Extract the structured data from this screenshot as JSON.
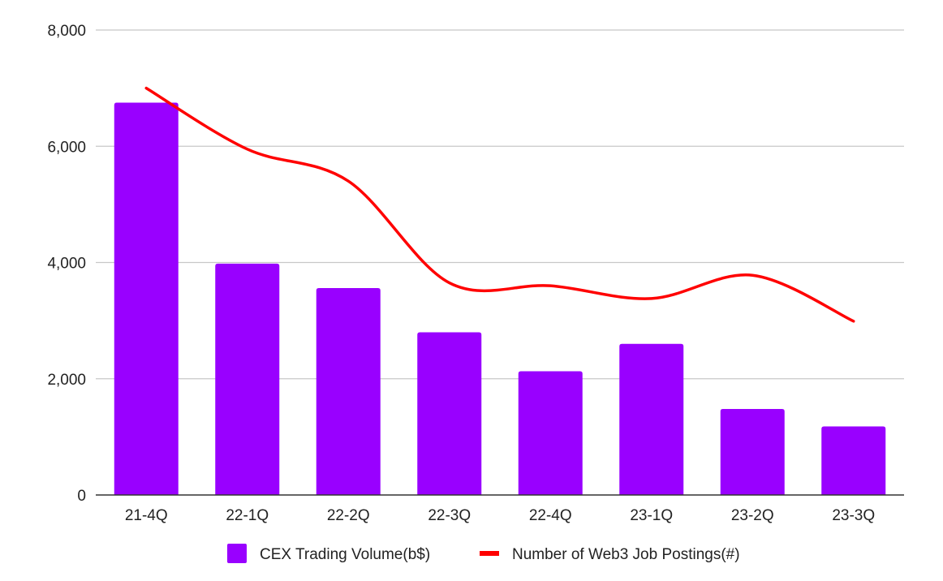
{
  "chart_data": {
    "type": "bar",
    "title": "",
    "xlabel": "",
    "ylabel": "",
    "categories": [
      "21-4Q",
      "22-1Q",
      "22-2Q",
      "22-3Q",
      "22-4Q",
      "23-1Q",
      "23-2Q",
      "23-3Q"
    ],
    "ylim": [
      0,
      8000
    ],
    "yticks": [
      0,
      2000,
      4000,
      6000,
      8000
    ],
    "ytick_labels": [
      "0",
      "2,000",
      "4,000",
      "6,000",
      "8,000"
    ],
    "grid": true,
    "legend_position": "bottom",
    "series": [
      {
        "name": "CEX Trading Volume(b$)",
        "type": "bar",
        "color": "#9900ff",
        "values": [
          6750,
          3980,
          3560,
          2800,
          2130,
          2600,
          1480,
          1180
        ]
      },
      {
        "name": "Number of Web3 Job Postings(#)",
        "type": "line",
        "smooth": true,
        "color": "#ff0000",
        "values": [
          7000,
          5950,
          5400,
          3650,
          3600,
          3380,
          3780,
          2990
        ]
      }
    ]
  }
}
